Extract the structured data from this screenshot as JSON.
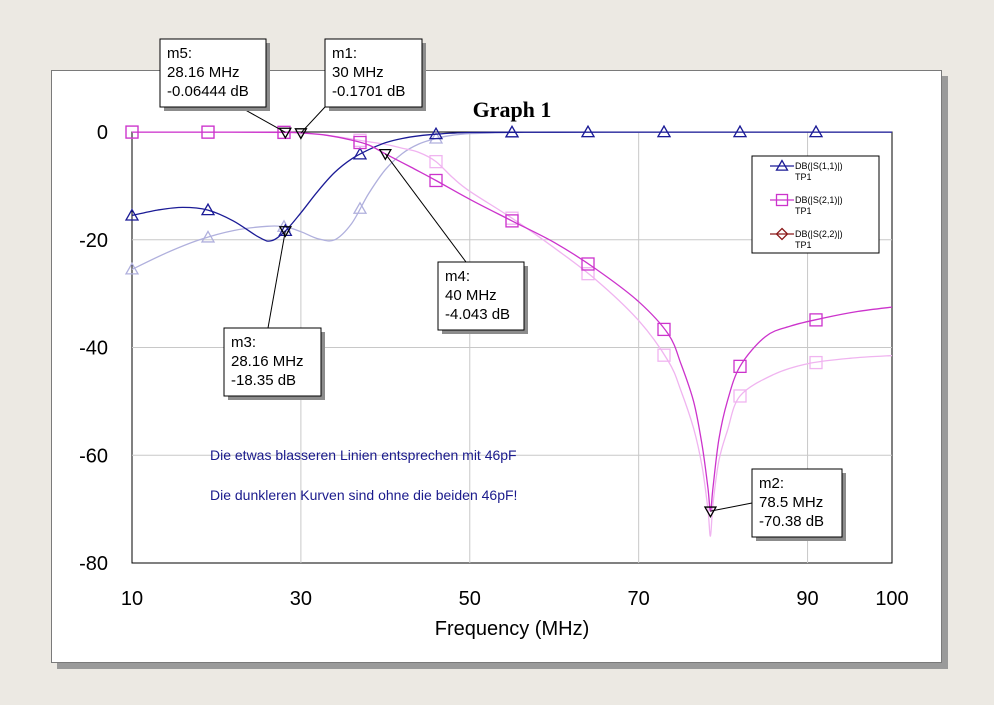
{
  "chart_data": {
    "type": "line",
    "title": "Graph 1",
    "xlabel": "Frequency (MHz)",
    "ylabel": "",
    "xlim": [
      10,
      100
    ],
    "ylim": [
      -80,
      0
    ],
    "xticks": [
      "10",
      "30",
      "50",
      "70",
      "90",
      "100"
    ],
    "yticks": [
      "0",
      "-20",
      "-40",
      "-60",
      "-80"
    ],
    "grid": true,
    "legend_position": "top-right",
    "legend": [
      {
        "label": "DB(|S(1,1)|)",
        "sub": "TP1",
        "marker": "triangle-up",
        "color": "#1b1b96"
      },
      {
        "label": "DB(|S(2,1)|)",
        "sub": "TP1",
        "marker": "square",
        "color": "#cc33cc"
      },
      {
        "label": "DB(|S(2,2)|)",
        "sub": "TP1",
        "marker": "diamond",
        "color": "#8b1a1a"
      }
    ],
    "series": [
      {
        "id": "s11_dark",
        "color": "#1b1b96",
        "marker": "triangle-up",
        "x": [
          10,
          13,
          16,
          19,
          22,
          25,
          26.5,
          28.16,
          30,
          32,
          34,
          36,
          38,
          40,
          42,
          44,
          46,
          48,
          50,
          55,
          60,
          70,
          80,
          90,
          100
        ],
        "y": [
          -15.5,
          -14.5,
          -14.0,
          -14.5,
          -16.5,
          -19.5,
          -20.2,
          -18.35,
          -15.0,
          -11.0,
          -7.5,
          -5.0,
          -3.3,
          -2.0,
          -1.2,
          -0.7,
          -0.4,
          -0.2,
          -0.1,
          -0.05,
          -0.03,
          -0.02,
          -0.02,
          -0.02,
          -0.02
        ],
        "marker_x": [
          10,
          19,
          28.16,
          37,
          46,
          55,
          64,
          73,
          82,
          91
        ]
      },
      {
        "id": "s11_light",
        "color": "#b0b0dd",
        "marker": "triangle-up",
        "x": [
          10,
          14,
          18,
          22,
          26,
          28.16,
          30,
          32,
          34,
          36,
          38,
          40,
          42,
          44,
          46,
          48,
          50,
          55,
          60,
          70,
          80,
          90,
          100
        ],
        "y": [
          -25.5,
          -22.5,
          -20.0,
          -18.3,
          -17.5,
          -17.6,
          -18.5,
          -19.8,
          -20.0,
          -17.0,
          -11.5,
          -7.0,
          -4.0,
          -2.2,
          -1.2,
          -0.6,
          -0.3,
          -0.1,
          -0.05,
          -0.03,
          -0.02,
          -0.02,
          -0.02
        ],
        "marker_x": [
          10,
          19,
          28,
          37,
          46,
          55,
          64,
          73,
          82,
          91
        ]
      },
      {
        "id": "s21_dark",
        "color": "#cc33cc",
        "marker": "square",
        "x": [
          10,
          20,
          28.16,
          30,
          33,
          36,
          38,
          40,
          43,
          46,
          50,
          55,
          60,
          65,
          70,
          73.5,
          75,
          76.5,
          77.5,
          78.2,
          78.5,
          78.8,
          79.5,
          80.5,
          82,
          85,
          88,
          92,
          96,
          100
        ],
        "y": [
          -0.01,
          -0.02,
          -0.06444,
          -0.1701,
          -0.6,
          -1.5,
          -2.4,
          -4.043,
          -6.5,
          -9.0,
          -12.5,
          -16.5,
          -20.5,
          -25.5,
          -31.5,
          -37.5,
          -43.0,
          -50.0,
          -58.0,
          -66.0,
          -70.38,
          -66.0,
          -57.0,
          -50.0,
          -43.5,
          -38.0,
          -36.0,
          -34.5,
          -33.3,
          -32.5
        ],
        "marker_x": [
          10,
          19,
          28,
          37,
          46,
          55,
          64,
          73,
          82,
          91
        ]
      },
      {
        "id": "s21_light",
        "color": "#f0b4f0",
        "marker": "square",
        "x": [
          10,
          20,
          28,
          30,
          33,
          36,
          38,
          40,
          42,
          44,
          46,
          48,
          50,
          55,
          60,
          65,
          70,
          73.5,
          75,
          76.5,
          77.5,
          78.2,
          78.5,
          78.8,
          79.5,
          80.5,
          82,
          86,
          90,
          95,
          100
        ],
        "y": [
          -0.02,
          -0.04,
          -0.1,
          -0.2,
          -0.6,
          -1.3,
          -1.8,
          -2.3,
          -3.0,
          -3.8,
          -5.5,
          -8.5,
          -11.0,
          -16.0,
          -21.5,
          -27.5,
          -35.0,
          -42.5,
          -48.0,
          -55.0,
          -62.0,
          -70.0,
          -75.0,
          -69.0,
          -61.0,
          -55.5,
          -49.0,
          -45.0,
          -43.0,
          -42.0,
          -41.5
        ],
        "marker_x": [
          10,
          19,
          28,
          37,
          46,
          55,
          64,
          73,
          82,
          91
        ]
      },
      {
        "id": "s22_marker",
        "color": "#8b1a1a",
        "marker": "triangle-down",
        "x": [],
        "y": [],
        "marker_x": []
      }
    ],
    "markers": [
      {
        "name": "m5",
        "freq": "28.16 MHz",
        "db": "-0.06444 dB",
        "x": 28.16,
        "y": -0.06444
      },
      {
        "name": "m1",
        "freq": "30 MHz",
        "db": "-0.1701 dB",
        "x": 30,
        "y": -0.1701
      },
      {
        "name": "m4",
        "freq": "40 MHz",
        "db": "-4.043 dB",
        "x": 40,
        "y": -4.043
      },
      {
        "name": "m3",
        "freq": "28.16 MHz",
        "db": "-18.35 dB",
        "x": 28.16,
        "y": -18.35
      },
      {
        "name": "m2",
        "freq": "78.5 MHz",
        "db": "-70.38 dB",
        "x": 78.5,
        "y": -70.38
      }
    ],
    "annotations": [
      "Die etwas blasseren Linien entsprechen mit 46pF",
      "Die dunkleren Kurven sind ohne die beiden 46pF!"
    ]
  }
}
